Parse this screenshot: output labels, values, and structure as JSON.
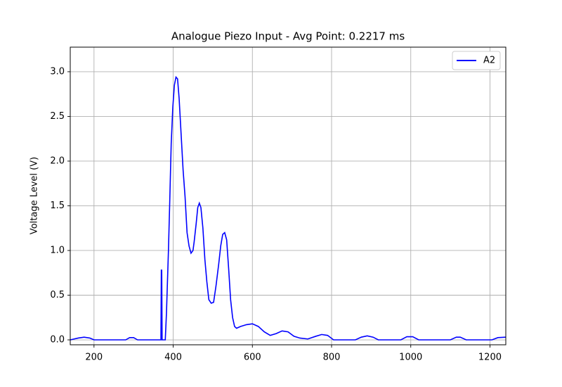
{
  "chart_data": {
    "type": "line",
    "title": "Analogue Piezo Input - Avg Point: 0.2217 ms",
    "ylabel": "Voltage Level (V)",
    "x": [
      140,
      160,
      175,
      190,
      200,
      280,
      290,
      300,
      310,
      365,
      369,
      370,
      371,
      372,
      380,
      383,
      388,
      391,
      395,
      399,
      403,
      407,
      411,
      415,
      420,
      425,
      430,
      435,
      440,
      445,
      450,
      453,
      458,
      462,
      466,
      470,
      475,
      480,
      485,
      490,
      496,
      502,
      508,
      515,
      520,
      525,
      530,
      535,
      540,
      545,
      550,
      555,
      560,
      570,
      585,
      600,
      615,
      630,
      645,
      660,
      675,
      690,
      705,
      720,
      740,
      760,
      775,
      790,
      805,
      860,
      875,
      890,
      905,
      918,
      975,
      990,
      1005,
      1020,
      1100,
      1115,
      1125,
      1140,
      1205,
      1220,
      1240
    ],
    "series": [
      {
        "name": "A2",
        "color": "#0000ff",
        "values": [
          0,
          0.02,
          0.03,
          0.02,
          0,
          0,
          0.025,
          0.025,
          0,
          0,
          0,
          0.78,
          0.78,
          0,
          0,
          0.3,
          1.0,
          1.5,
          2.2,
          2.6,
          2.85,
          2.94,
          2.92,
          2.7,
          2.3,
          1.9,
          1.6,
          1.2,
          1.05,
          0.97,
          1.0,
          1.1,
          1.3,
          1.48,
          1.53,
          1.48,
          1.25,
          0.9,
          0.65,
          0.45,
          0.41,
          0.42,
          0.6,
          0.85,
          1.05,
          1.18,
          1.2,
          1.12,
          0.8,
          0.45,
          0.25,
          0.15,
          0.13,
          0.15,
          0.17,
          0.18,
          0.15,
          0.09,
          0.05,
          0.07,
          0.1,
          0.09,
          0.04,
          0.02,
          0.01,
          0.04,
          0.06,
          0.05,
          0,
          0,
          0.03,
          0.045,
          0.03,
          0,
          0,
          0.035,
          0.035,
          0,
          0,
          0.03,
          0.03,
          0,
          0,
          0.025,
          0.03
        ]
      }
    ],
    "xlim": [
      140,
      1240
    ],
    "ylim": [
      -0.055,
      3.275
    ],
    "xticks": [
      200,
      400,
      600,
      800,
      1000,
      1200
    ],
    "yticks": [
      {
        "value": 0,
        "label": "0.0"
      },
      0.5,
      {
        "value": 1,
        "label": "1.0"
      },
      1.5,
      {
        "value": 2,
        "label": "2.0"
      },
      2.5,
      {
        "value": 3,
        "label": "3.0"
      }
    ],
    "grid": true,
    "legend": "upper right"
  }
}
